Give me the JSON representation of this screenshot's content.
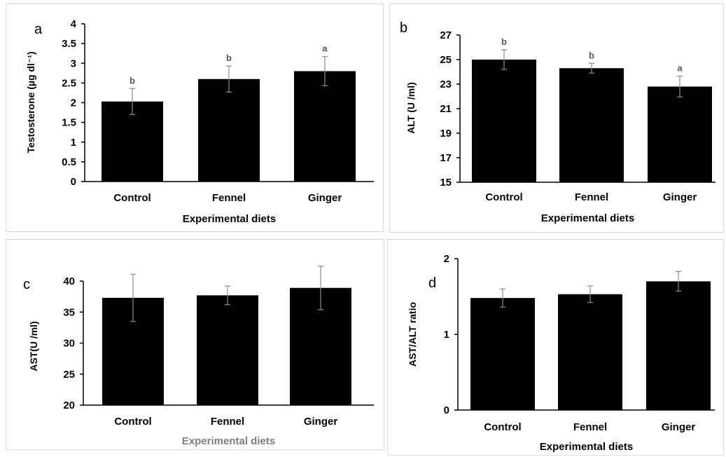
{
  "chart_data": [
    {
      "panel_label": "a",
      "type": "bar",
      "categories": [
        "Control",
        "Fennel",
        "Ginger"
      ],
      "values": [
        2.03,
        2.6,
        2.8
      ],
      "errors": [
        0.33,
        0.33,
        0.37
      ],
      "significance": [
        "b",
        "b",
        "a"
      ],
      "xlabel": "Experimental diets",
      "ylabel": "Testosterone (µg dl⁻¹)",
      "ylim": [
        0,
        4
      ],
      "yticks": [
        "0",
        "0.5",
        "1",
        "1.5",
        "2",
        "2.5",
        "3",
        "3.5",
        "4"
      ],
      "bar_color": "#000000",
      "xlabel_color": "#000000",
      "grid": false
    },
    {
      "panel_label": "b",
      "type": "bar",
      "categories": [
        "Control",
        "Fennel",
        "Ginger"
      ],
      "values": [
        25.0,
        24.3,
        22.8
      ],
      "errors": [
        0.8,
        0.4,
        0.85
      ],
      "significance": [
        "b",
        "b",
        "a"
      ],
      "xlabel": "Experimental diets",
      "ylabel": "ALT (U /ml)",
      "ylim": [
        15,
        27
      ],
      "yticks": [
        "15",
        "17",
        "19",
        "21",
        "23",
        "25",
        "27"
      ],
      "bar_color": "#000000",
      "xlabel_color": "#000000",
      "grid": false
    },
    {
      "panel_label": "c",
      "type": "bar",
      "categories": [
        "Control",
        "Fennel",
        "Ginger"
      ],
      "values": [
        37.3,
        37.7,
        38.9
      ],
      "errors": [
        3.8,
        1.5,
        3.5
      ],
      "significance": [],
      "xlabel": "Experimental diets",
      "ylabel": "AST(U /ml)",
      "ylim": [
        20,
        40
      ],
      "yticks": [
        "20",
        "25",
        "30",
        "35",
        "40"
      ],
      "bar_color": "#000000",
      "xlabel_color": "#7f7f7f",
      "grid": false
    },
    {
      "panel_label": "d",
      "type": "bar",
      "categories": [
        "Control",
        "Fennel",
        "Ginger"
      ],
      "values": [
        1.48,
        1.53,
        1.7
      ],
      "errors": [
        0.12,
        0.11,
        0.13
      ],
      "significance": [],
      "xlabel": "Experimental diets",
      "ylabel": "AST/ALT ratio",
      "ylim": [
        0,
        2
      ],
      "yticks": [
        "0",
        "1",
        "2"
      ],
      "bar_color": "#000000",
      "xlabel_color": "#000000",
      "grid": false
    }
  ]
}
